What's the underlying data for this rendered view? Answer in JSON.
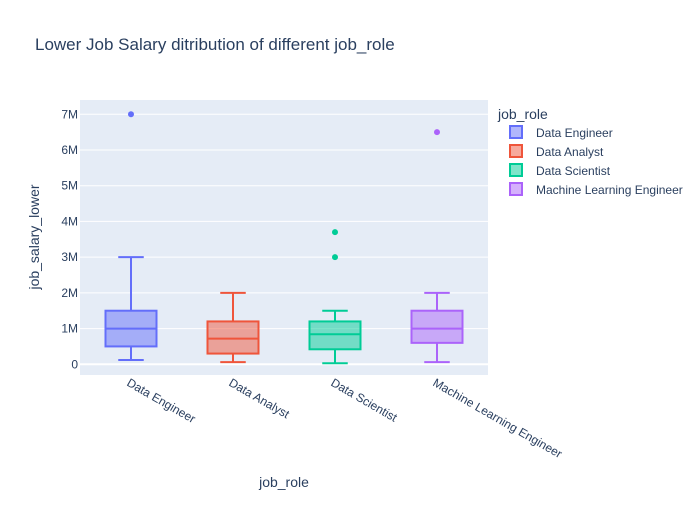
{
  "chart_data": {
    "type": "box",
    "title": "Lower Job Salary ditribution of different job_role",
    "xlabel": "job_role",
    "ylabel": "job_salary_lower",
    "ylim": [
      -300000,
      7400000
    ],
    "yticks": [
      {
        "value": 0,
        "label": "0"
      },
      {
        "value": 1000000,
        "label": "1M"
      },
      {
        "value": 2000000,
        "label": "2M"
      },
      {
        "value": 3000000,
        "label": "3M"
      },
      {
        "value": 4000000,
        "label": "4M"
      },
      {
        "value": 5000000,
        "label": "5M"
      },
      {
        "value": 6000000,
        "label": "6M"
      },
      {
        "value": 7000000,
        "label": "7M"
      }
    ],
    "grid": true,
    "legend": {
      "title": "job_role",
      "placement": "right"
    },
    "categories": [
      "Data Engineer",
      "Data Analyst",
      "Data Scientist",
      "Machine Learning Engineer"
    ],
    "series": [
      {
        "name": "Data Engineer",
        "color": "#636efa",
        "min": 120000,
        "q1": 500000,
        "median": 1000000,
        "q3": 1500000,
        "max": 3000000,
        "outliers": [
          7000000
        ]
      },
      {
        "name": "Data Analyst",
        "color": "#EF553B",
        "min": 60000,
        "q1": 300000,
        "median": 720000,
        "q3": 1200000,
        "max": 2000000,
        "outliers": []
      },
      {
        "name": "Data Scientist",
        "color": "#00cc96",
        "min": 30000,
        "q1": 420000,
        "median": 840000,
        "q3": 1200000,
        "max": 1500000,
        "outliers": [
          3000000,
          3700000
        ]
      },
      {
        "name": "Machine Learning Engineer",
        "color": "#ab63fa",
        "min": 60000,
        "q1": 600000,
        "median": 1000000,
        "q3": 1500000,
        "max": 2000000,
        "outliers": [
          6500000
        ]
      }
    ]
  }
}
